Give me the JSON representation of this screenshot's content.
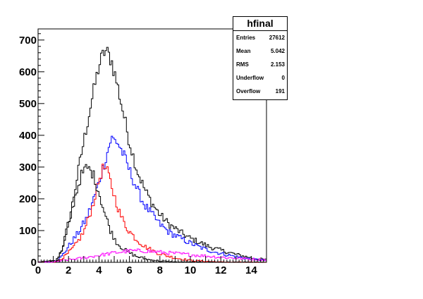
{
  "chart_data": {
    "type": "histogram",
    "title": "",
    "xlabel": "",
    "ylabel": "",
    "xlim": [
      0,
      15
    ],
    "ylim": [
      0,
      735
    ],
    "x_ticks": [
      0,
      2,
      4,
      6,
      8,
      10,
      12,
      14
    ],
    "y_ticks": [
      0,
      100,
      200,
      300,
      400,
      500,
      600,
      700
    ],
    "grid": false,
    "bin_width": 0.1,
    "series": [
      {
        "color": "#000000",
        "peaks": [
          [
            0.0,
            1
          ],
          [
            1.2,
            5
          ],
          [
            1.6,
            45
          ],
          [
            2.2,
            170
          ],
          [
            2.8,
            330
          ],
          [
            3.4,
            480
          ],
          [
            4.0,
            620
          ],
          [
            4.4,
            668
          ],
          [
            4.8,
            640
          ],
          [
            5.2,
            560
          ],
          [
            5.6,
            470
          ],
          [
            6.0,
            380
          ],
          [
            6.5,
            290
          ],
          [
            7.0,
            230
          ],
          [
            7.5,
            185
          ],
          [
            8.0,
            150
          ],
          [
            8.6,
            120
          ],
          [
            9.2,
            100
          ],
          [
            9.8,
            80
          ],
          [
            10.5,
            65
          ],
          [
            11.2,
            50
          ],
          [
            12.0,
            38
          ],
          [
            13.0,
            25
          ],
          [
            14.0,
            14
          ],
          [
            15.0,
            8
          ]
        ]
      },
      {
        "color": "#0000ff",
        "peaks": [
          [
            0.0,
            0
          ],
          [
            1.0,
            2
          ],
          [
            1.5,
            15
          ],
          [
            2.0,
            50
          ],
          [
            2.6,
            90
          ],
          [
            3.2,
            140
          ],
          [
            3.8,
            220
          ],
          [
            4.4,
            320
          ],
          [
            4.8,
            390
          ],
          [
            5.2,
            380
          ],
          [
            5.6,
            340
          ],
          [
            6.0,
            290
          ],
          [
            6.5,
            230
          ],
          [
            7.0,
            180
          ],
          [
            7.5,
            150
          ],
          [
            8.0,
            120
          ],
          [
            8.6,
            95
          ],
          [
            9.2,
            80
          ],
          [
            9.8,
            65
          ],
          [
            10.5,
            50
          ],
          [
            11.2,
            38
          ],
          [
            12.0,
            28
          ],
          [
            13.0,
            18
          ],
          [
            14.0,
            10
          ],
          [
            15.0,
            6
          ]
        ]
      },
      {
        "color": "#ff0000",
        "peaks": [
          [
            0.0,
            0
          ],
          [
            1.2,
            2
          ],
          [
            1.8,
            20
          ],
          [
            2.4,
            50
          ],
          [
            3.0,
            95
          ],
          [
            3.6,
            180
          ],
          [
            4.0,
            260
          ],
          [
            4.3,
            300
          ],
          [
            4.6,
            280
          ],
          [
            5.0,
            210
          ],
          [
            5.4,
            150
          ],
          [
            5.8,
            110
          ],
          [
            6.4,
            75
          ],
          [
            7.0,
            50
          ],
          [
            7.6,
            35
          ],
          [
            8.2,
            24
          ],
          [
            9.0,
            14
          ],
          [
            10.0,
            6
          ],
          [
            11.0,
            3
          ],
          [
            12.0,
            1
          ],
          [
            15.0,
            0
          ]
        ]
      },
      {
        "color": "#000000",
        "peaks": [
          [
            0.0,
            0
          ],
          [
            1.2,
            3
          ],
          [
            1.6,
            40
          ],
          [
            2.0,
            110
          ],
          [
            2.4,
            200
          ],
          [
            2.8,
            270
          ],
          [
            3.2,
            300
          ],
          [
            3.6,
            280
          ],
          [
            4.0,
            220
          ],
          [
            4.4,
            150
          ],
          [
            4.8,
            95
          ],
          [
            5.2,
            60
          ],
          [
            5.8,
            35
          ],
          [
            6.5,
            18
          ],
          [
            7.2,
            9
          ],
          [
            8.0,
            4
          ],
          [
            9.0,
            1
          ],
          [
            15.0,
            0
          ]
        ]
      },
      {
        "color": "#ff00ff",
        "peaks": [
          [
            0.0,
            0
          ],
          [
            1.0,
            1
          ],
          [
            2.0,
            8
          ],
          [
            3.0,
            14
          ],
          [
            4.0,
            22
          ],
          [
            5.0,
            30
          ],
          [
            6.0,
            36
          ],
          [
            7.0,
            36
          ],
          [
            8.0,
            32
          ],
          [
            9.0,
            28
          ],
          [
            10.0,
            24
          ],
          [
            11.0,
            20
          ],
          [
            12.0,
            16
          ],
          [
            13.0,
            13
          ],
          [
            14.0,
            10
          ],
          [
            15.0,
            8
          ]
        ]
      }
    ]
  },
  "stats": {
    "title": "hfinal",
    "rows": [
      {
        "label": "Entries",
        "value": "27612"
      },
      {
        "label": "Mean",
        "value": "5.042"
      },
      {
        "label": "RMS",
        "value": "2.153"
      },
      {
        "label": "Underflow",
        "value": "0"
      },
      {
        "label": "Overflow",
        "value": "191"
      }
    ]
  }
}
